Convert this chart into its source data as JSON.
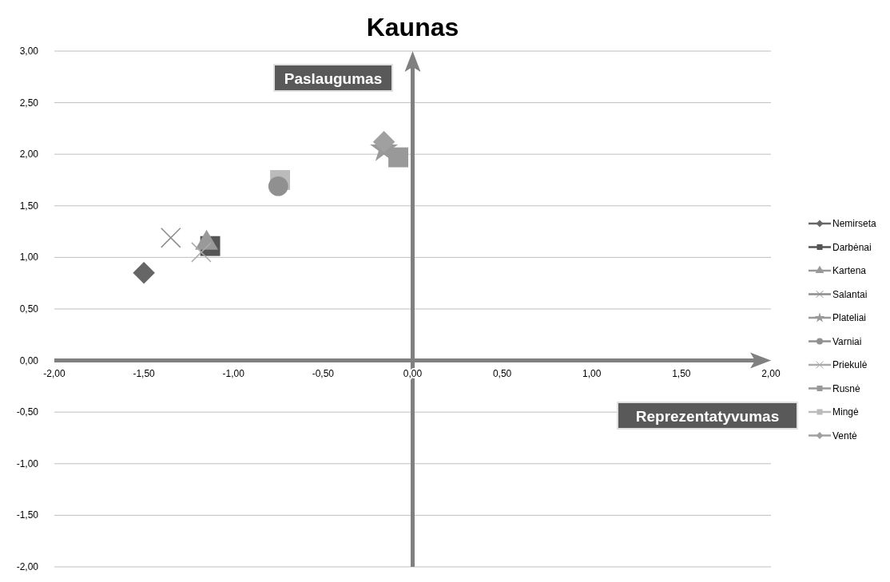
{
  "chart_data": {
    "type": "scatter",
    "title": "Kaunas",
    "xlabel": "Reprezentatyvumas",
    "ylabel": "Paslaugumas",
    "xlim": [
      -2,
      2
    ],
    "ylim": [
      -2,
      3
    ],
    "xticks": [
      {
        "value": -2,
        "label": "-2,00"
      },
      {
        "value": -1.5,
        "label": "-1,50"
      },
      {
        "value": -1,
        "label": "-1,00"
      },
      {
        "value": -0.5,
        "label": "-0,50"
      },
      {
        "value": 0,
        "label": "0,00"
      },
      {
        "value": 0.5,
        "label": "0,50"
      },
      {
        "value": 1,
        "label": "1,00"
      },
      {
        "value": 1.5,
        "label": "1,50"
      },
      {
        "value": 2,
        "label": "2,00"
      }
    ],
    "yticks": [
      {
        "value": -2,
        "label": "-2,00"
      },
      {
        "value": -1.5,
        "label": "-1,50"
      },
      {
        "value": -1,
        "label": "-1,00"
      },
      {
        "value": -0.5,
        "label": "-0,50"
      },
      {
        "value": 0,
        "label": "0,00"
      },
      {
        "value": 0.5,
        "label": "0,50"
      },
      {
        "value": 1,
        "label": "1,00"
      },
      {
        "value": 1.5,
        "label": "1,50"
      },
      {
        "value": 2,
        "label": "2,00"
      },
      {
        "value": 2.5,
        "label": "2,50"
      },
      {
        "value": 3,
        "label": "3,00"
      }
    ],
    "grid": "y",
    "legend": "right",
    "series": [
      {
        "name": "Nemirseta",
        "color": "#666666",
        "marker": "diamond",
        "x": [
          -1.5
        ],
        "values": [
          0.85
        ]
      },
      {
        "name": "Darbėnai",
        "color": "#555555",
        "marker": "square",
        "x": [
          -1.13
        ],
        "values": [
          1.11
        ]
      },
      {
        "name": "Kartena",
        "color": "#999999",
        "marker": "triangle",
        "x": [
          -1.15
        ],
        "values": [
          1.14
        ]
      },
      {
        "name": "Salantai",
        "color": "#8c8c8c",
        "marker": "cross",
        "x": [
          -1.35
        ],
        "values": [
          1.19
        ]
      },
      {
        "name": "Plateliai",
        "color": "#999999",
        "marker": "star",
        "x": [
          -0.16
        ],
        "values": [
          2.05
        ]
      },
      {
        "name": "Varniai",
        "color": "#909090",
        "marker": "circle",
        "x": [
          -0.75
        ],
        "values": [
          1.69
        ]
      },
      {
        "name": "Priekulė",
        "color": "#aaaaaa",
        "marker": "cross",
        "x": [
          -1.18
        ],
        "values": [
          1.05
        ]
      },
      {
        "name": "Rusnė",
        "color": "#999999",
        "marker": "square",
        "x": [
          -0.08
        ],
        "values": [
          1.97
        ]
      },
      {
        "name": "Mingė",
        "color": "#bbbbbb",
        "marker": "square",
        "x": [
          -0.74
        ],
        "values": [
          1.75
        ]
      },
      {
        "name": "Ventė",
        "color": "#a0a0a0",
        "marker": "diamond",
        "x": [
          -0.16
        ],
        "values": [
          2.12
        ]
      }
    ]
  }
}
